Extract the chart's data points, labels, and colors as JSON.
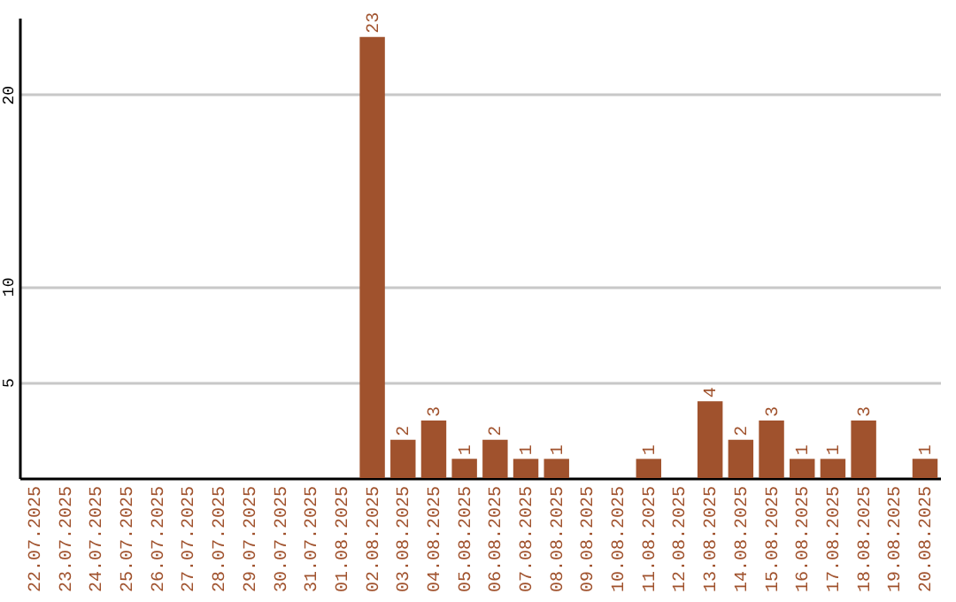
{
  "chart_data": {
    "type": "bar",
    "categories": [
      "22.07.2025",
      "23.07.2025",
      "24.07.2025",
      "25.07.2025",
      "26.07.2025",
      "27.07.2025",
      "28.07.2025",
      "29.07.2025",
      "30.07.2025",
      "31.07.2025",
      "01.08.2025",
      "02.08.2025",
      "03.08.2025",
      "04.08.2025",
      "05.08.2025",
      "06.08.2025",
      "07.08.2025",
      "08.08.2025",
      "09.08.2025",
      "10.08.2025",
      "11.08.2025",
      "12.08.2025",
      "13.08.2025",
      "14.08.2025",
      "15.08.2025",
      "16.08.2025",
      "17.08.2025",
      "18.08.2025",
      "19.08.2025",
      "20.08.2025"
    ],
    "values": [
      0,
      0,
      0,
      0,
      0,
      0,
      0,
      0,
      0,
      0,
      0,
      23,
      2,
      3,
      1,
      2,
      1,
      1,
      0,
      0,
      1,
      0,
      4,
      2,
      3,
      1,
      1,
      3,
      0,
      1
    ],
    "value_labels": [
      null,
      null,
      null,
      null,
      null,
      null,
      null,
      null,
      null,
      null,
      null,
      "23",
      "2",
      "3",
      "1",
      "2",
      "1",
      "1",
      null,
      null,
      "1",
      null,
      "4",
      "2",
      "3",
      "1",
      "1",
      "3",
      null,
      "1"
    ],
    "color": "#a0522d",
    "ylim": [
      0,
      24
    ],
    "yticks": [
      5,
      10,
      20
    ],
    "grid": "y"
  }
}
